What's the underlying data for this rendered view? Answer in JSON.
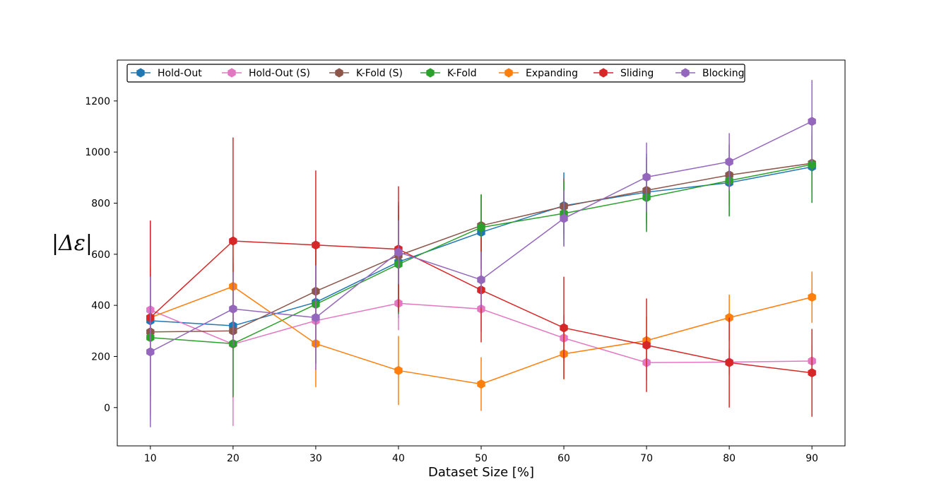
{
  "chart_data": {
    "type": "line",
    "title": "",
    "xlabel": "Dataset Size [%]",
    "ylabel": "|Δε|",
    "x": [
      10,
      20,
      30,
      40,
      50,
      60,
      70,
      80,
      90
    ],
    "xlim": [
      6,
      94
    ],
    "ylim": [
      -150,
      1360
    ],
    "xticks": [
      10,
      20,
      30,
      40,
      50,
      60,
      70,
      80,
      90
    ],
    "yticks": [
      0,
      200,
      400,
      600,
      800,
      1000,
      1200
    ],
    "legend_position": "top-left",
    "series": [
      {
        "name": "Hold-Out",
        "color": "#1f77b4",
        "values": [
          340,
          320,
          412,
          570,
          686,
          790,
          843,
          880,
          942
        ],
        "error": [
          390,
          270,
          240,
          220,
          145,
          130,
          150,
          130,
          140
        ]
      },
      {
        "name": "Hold-Out (S)",
        "color": "#e377c2",
        "values": [
          382,
          248,
          340,
          408,
          386,
          272,
          176,
          178,
          182
        ],
        "error": [
          130,
          320,
          170,
          105,
          90,
          90,
          70,
          50,
          60
        ]
      },
      {
        "name": "K-Fold (S)",
        "color": "#8c564b",
        "values": [
          296,
          300,
          455,
          595,
          712,
          787,
          850,
          910,
          956
        ],
        "error": [
          250,
          260,
          200,
          210,
          120,
          110,
          130,
          120,
          110
        ]
      },
      {
        "name": "K-Fold",
        "color": "#2ca02c",
        "values": [
          274,
          250,
          404,
          561,
          705,
          760,
          822,
          888,
          951
        ],
        "error": [
          250,
          205,
          230,
          195,
          130,
          125,
          135,
          140,
          150
        ]
      },
      {
        "name": "Expanding",
        "color": "#ff7f0e",
        "values": [
          352,
          474,
          250,
          145,
          92,
          210,
          262,
          352,
          432
        ],
        "error": [
          160,
          185,
          170,
          135,
          105,
          100,
          95,
          90,
          100
        ]
      },
      {
        "name": "Sliding",
        "color": "#d62728",
        "values": [
          352,
          652,
          636,
          620,
          460,
          312,
          244,
          176,
          136
        ],
        "error": [
          380,
          405,
          292,
          246,
          205,
          200,
          183,
          176,
          172
        ]
      },
      {
        "name": "Blocking",
        "color": "#9467bd",
        "values": [
          218,
          386,
          352,
          608,
          500,
          740,
          902,
          962,
          1120
        ],
        "error": [
          295,
          145,
          205,
          125,
          110,
          110,
          135,
          112,
          162
        ]
      }
    ]
  }
}
